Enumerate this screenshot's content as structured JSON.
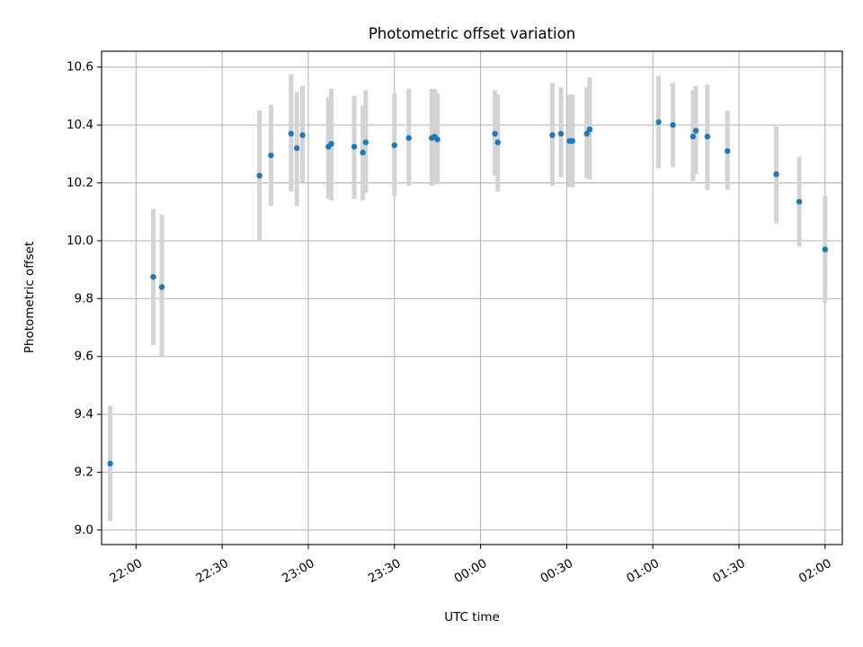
{
  "chart_data": {
    "type": "scatter",
    "title": "Photometric offset variation",
    "xlabel": "UTC time",
    "ylabel": "Photometric offset",
    "xlim": [
      "21:48",
      "02:06"
    ],
    "ylim": [
      8.95,
      10.655
    ],
    "grid": true,
    "x_ticks": [
      "22:00",
      "22:30",
      "23:00",
      "23:30",
      "00:00",
      "00:30",
      "01:00",
      "01:30",
      "02:00"
    ],
    "y_ticks": [
      "9.0",
      "9.2",
      "9.4",
      "9.6",
      "9.8",
      "10.0",
      "10.2",
      "10.4",
      "10.6"
    ],
    "errorbar_color": "#d3d3d3",
    "marker_color": "#1f77b4",
    "points": [
      {
        "t": "21:51",
        "y": 9.23,
        "lo": 9.03,
        "hi": 9.43
      },
      {
        "t": "22:06",
        "y": 9.875,
        "lo": 9.64,
        "hi": 10.11
      },
      {
        "t": "22:09",
        "y": 9.84,
        "lo": 9.6,
        "hi": 10.09
      },
      {
        "t": "22:43",
        "y": 10.225,
        "lo": 10.0,
        "hi": 10.45
      },
      {
        "t": "22:47",
        "y": 10.295,
        "lo": 10.12,
        "hi": 10.47
      },
      {
        "t": "22:54",
        "y": 10.37,
        "lo": 10.17,
        "hi": 10.575
      },
      {
        "t": "22:56",
        "y": 10.32,
        "lo": 10.12,
        "hi": 10.515
      },
      {
        "t": "22:58",
        "y": 10.365,
        "lo": 10.2,
        "hi": 10.535
      },
      {
        "t": "23:07",
        "y": 10.325,
        "lo": 10.145,
        "hi": 10.495
      },
      {
        "t": "23:08",
        "y": 10.335,
        "lo": 10.14,
        "hi": 10.525
      },
      {
        "t": "23:16",
        "y": 10.325,
        "lo": 10.145,
        "hi": 10.5
      },
      {
        "t": "23:19",
        "y": 10.305,
        "lo": 10.14,
        "hi": 10.465
      },
      {
        "t": "23:20",
        "y": 10.34,
        "lo": 10.165,
        "hi": 10.52
      },
      {
        "t": "23:30",
        "y": 10.33,
        "lo": 10.155,
        "hi": 10.51
      },
      {
        "t": "23:35",
        "y": 10.355,
        "lo": 10.19,
        "hi": 10.525
      },
      {
        "t": "23:43",
        "y": 10.355,
        "lo": 10.19,
        "hi": 10.525
      },
      {
        "t": "23:44",
        "y": 10.36,
        "lo": 10.195,
        "hi": 10.525
      },
      {
        "t": "23:45",
        "y": 10.35,
        "lo": 10.195,
        "hi": 10.51
      },
      {
        "t": "00:05",
        "y": 10.37,
        "lo": 10.225,
        "hi": 10.52
      },
      {
        "t": "00:06",
        "y": 10.34,
        "lo": 10.17,
        "hi": 10.505
      },
      {
        "t": "00:25",
        "y": 10.365,
        "lo": 10.19,
        "hi": 10.545
      },
      {
        "t": "00:28",
        "y": 10.37,
        "lo": 10.22,
        "hi": 10.53
      },
      {
        "t": "00:31",
        "y": 10.345,
        "lo": 10.185,
        "hi": 10.505
      },
      {
        "t": "00:32",
        "y": 10.345,
        "lo": 10.185,
        "hi": 10.505
      },
      {
        "t": "00:37",
        "y": 10.37,
        "lo": 10.215,
        "hi": 10.53
      },
      {
        "t": "00:38",
        "y": 10.385,
        "lo": 10.21,
        "hi": 10.565
      },
      {
        "t": "01:02",
        "y": 10.41,
        "lo": 10.25,
        "hi": 10.57
      },
      {
        "t": "01:07",
        "y": 10.4,
        "lo": 10.255,
        "hi": 10.545
      },
      {
        "t": "01:14",
        "y": 10.36,
        "lo": 10.205,
        "hi": 10.52
      },
      {
        "t": "01:15",
        "y": 10.38,
        "lo": 10.23,
        "hi": 10.535
      },
      {
        "t": "01:19",
        "y": 10.36,
        "lo": 10.175,
        "hi": 10.54
      },
      {
        "t": "01:26",
        "y": 10.31,
        "lo": 10.175,
        "hi": 10.45
      },
      {
        "t": "01:43",
        "y": 10.23,
        "lo": 10.06,
        "hi": 10.395
      },
      {
        "t": "01:51",
        "y": 10.135,
        "lo": 9.98,
        "hi": 10.29
      },
      {
        "t": "02:00",
        "y": 9.97,
        "lo": 9.785,
        "hi": 10.155
      }
    ]
  }
}
